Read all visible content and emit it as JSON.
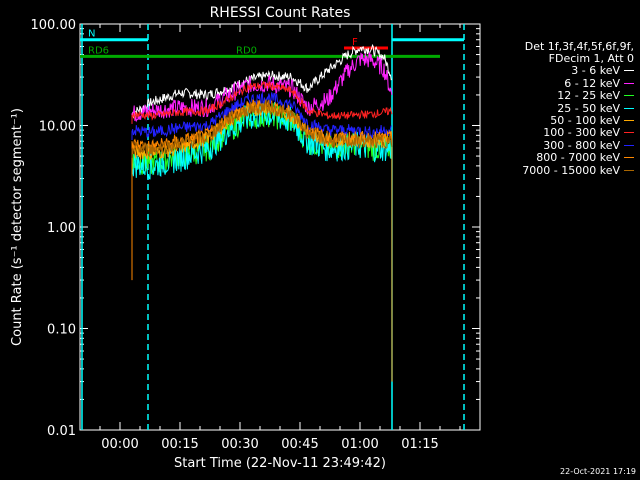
{
  "chart_data": {
    "type": "line",
    "title": "RHESSI Count Rates",
    "xlabel": "Start Time (22-Nov-11 23:49:42)",
    "ylabel": "Count Rate (s⁻¹ detector segment⁻¹)",
    "y_scale": "log",
    "ylim": [
      0.01,
      100
    ],
    "xlim_minutes": [
      -10,
      90
    ],
    "x_ticks": [
      "00:00",
      "00:15",
      "00:30",
      "00:45",
      "01:00",
      "01:15"
    ],
    "x_tick_minutes": [
      0,
      15,
      30,
      45,
      60,
      75
    ],
    "y_ticks": [
      "0.01",
      "0.10",
      "1.00",
      "10.00",
      "100.00"
    ],
    "y_tick_values": [
      0.01,
      0.1,
      1,
      10,
      100
    ],
    "legend_header": [
      "Det 1f,3f,4f,5f,6f,9f,",
      "FDecim 1, Att 0"
    ],
    "legend_placement": "right",
    "series": [
      {
        "name": "3 - 6 keV",
        "color": "#ffffff",
        "x": [
          3,
          8,
          15,
          22,
          27,
          32,
          37,
          43,
          47,
          52,
          57,
          60,
          63,
          66,
          68
        ],
        "values": [
          13,
          17,
          21,
          20,
          23,
          28,
          31,
          30,
          23,
          35,
          50,
          58,
          56,
          47,
          30
        ]
      },
      {
        "name": "6 - 12 keV",
        "color": "#ff22ff",
        "x": [
          3,
          8,
          15,
          22,
          27,
          32,
          37,
          43,
          47,
          52,
          57,
          60,
          63,
          66,
          68
        ],
        "values": [
          13,
          14,
          15,
          15,
          20,
          25,
          26,
          23,
          15,
          18,
          35,
          45,
          44,
          36,
          20
        ]
      },
      {
        "name": "12 - 25 keV",
        "color": "#22ff22",
        "x": [
          3,
          8,
          15,
          22,
          27,
          32,
          37,
          43,
          47,
          52,
          57,
          60,
          63,
          66,
          68
        ],
        "values": [
          4.5,
          4.2,
          5,
          6,
          9,
          12,
          13,
          11,
          7,
          6,
          6.5,
          6.5,
          6,
          6,
          6
        ]
      },
      {
        "name": "25 - 50 keV",
        "color": "#00ffff",
        "x": [
          3,
          8,
          15,
          22,
          27,
          32,
          37,
          43,
          47,
          52,
          57,
          60,
          63,
          66,
          68
        ],
        "values": [
          4.2,
          4.0,
          4.8,
          6,
          9,
          12,
          13,
          11,
          7,
          6,
          6.2,
          6.3,
          6,
          6,
          6
        ]
      },
      {
        "name": "50 - 100 keV",
        "color": "#ffaa00",
        "x": [
          3,
          8,
          15,
          22,
          27,
          32,
          37,
          43,
          47,
          52,
          57,
          60,
          63,
          66,
          68
        ],
        "values": [
          5.5,
          5.3,
          6,
          7.5,
          11,
          14,
          15,
          12.5,
          8.5,
          7.2,
          7.2,
          7.2,
          7,
          7,
          7
        ]
      },
      {
        "name": "100 - 300 keV",
        "color": "#ff2222",
        "x": [
          3,
          8,
          15,
          22,
          27,
          32,
          37,
          43,
          47,
          52,
          57,
          60,
          63,
          66,
          68
        ],
        "values": [
          13,
          12.5,
          13.5,
          14,
          18,
          24,
          25,
          22,
          14,
          12.5,
          12.5,
          12.8,
          13,
          13.5,
          14
        ]
      },
      {
        "name": "300 - 800 keV",
        "color": "#2222ff",
        "x": [
          3,
          8,
          15,
          22,
          27,
          32,
          37,
          43,
          47,
          52,
          57,
          60,
          63,
          66,
          68
        ],
        "values": [
          9,
          8.5,
          9.5,
          10,
          14,
          18,
          19,
          16,
          10.5,
          9,
          9,
          9,
          8.5,
          9,
          9
        ]
      },
      {
        "name": "800 - 7000 keV",
        "color": "#ff8800",
        "x": [
          3,
          8,
          15,
          22,
          27,
          32,
          37,
          43,
          47,
          52,
          57,
          60,
          63,
          66,
          68
        ],
        "values": [
          6.5,
          6.2,
          7,
          8,
          12,
          15,
          16,
          13,
          9,
          7.5,
          7.5,
          7.5,
          7.5,
          7.5,
          7.5
        ]
      },
      {
        "name": "7000 - 15000 keV",
        "color": "#aa6600",
        "x": [
          3,
          8,
          15,
          22,
          27,
          32,
          37,
          43,
          47,
          52,
          57,
          60,
          63,
          66,
          68
        ],
        "values": [
          6,
          5.8,
          6.6,
          7.6,
          11.5,
          14.5,
          15.5,
          12.5,
          8.6,
          7,
          7,
          7,
          7,
          7,
          7
        ]
      }
    ],
    "annotations": [
      {
        "text": "N",
        "color": "#00ffff",
        "x_start": -10,
        "x_end": 7,
        "y": 70
      },
      {
        "text": "",
        "color": "#00ffff",
        "x_start": 68,
        "x_end": 86,
        "y": 70
      },
      {
        "text": "RD0",
        "color": "#00aa00",
        "x_start": 27,
        "x_end": 80,
        "y": 48
      },
      {
        "text": "RD6",
        "color": "#00aa00",
        "x_start": -10,
        "x_end": 27,
        "y": 48
      },
      {
        "text": "F",
        "color": "#ff0000",
        "x_start": 56,
        "x_end": 67,
        "y": 58
      }
    ],
    "vertical_markers": [
      {
        "x": -9.5,
        "color": "#00ffff",
        "style": "solid"
      },
      {
        "x": 7,
        "color": "#00ffff",
        "style": "dashed"
      },
      {
        "x": 68,
        "color": "#00ffff",
        "style": "solid"
      },
      {
        "x": 86,
        "color": "#00ffff",
        "style": "dashed"
      }
    ]
  },
  "timestamp": "22-Oct-2021 17:19"
}
